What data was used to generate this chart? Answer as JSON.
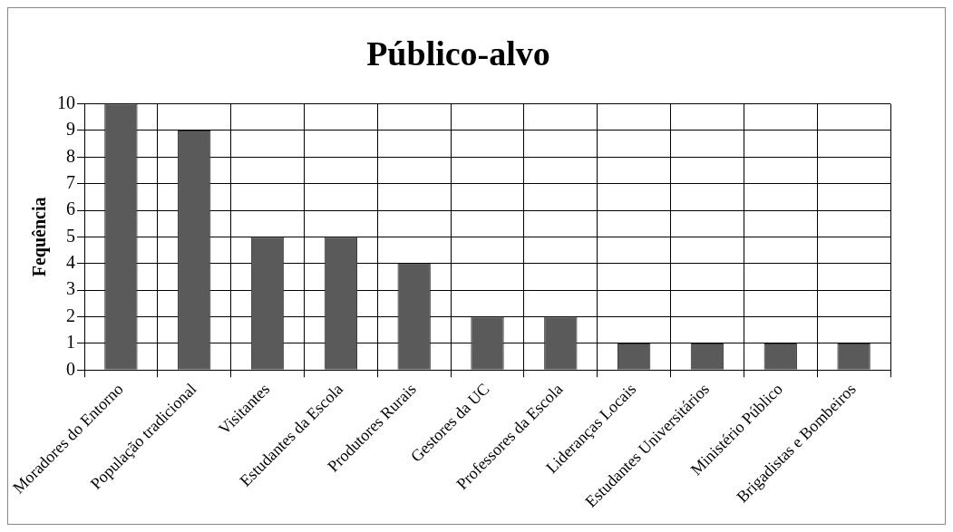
{
  "chart_data": {
    "type": "bar",
    "title": "Público-alvo",
    "ylabel": "Fequência",
    "categories": [
      "Moradores do Entorno",
      "População tradicional",
      "Visitantes",
      "Estudantes da Escola",
      "Produtores Rurais",
      "Gestores da UC",
      "Professores da Escola",
      "Lideranças Locais",
      "Estudantes Universitários",
      "Ministério Público",
      "Brigadistas e Bombeiros"
    ],
    "values": [
      10,
      9,
      5,
      5,
      4,
      2,
      2,
      1,
      1,
      1,
      1
    ],
    "color": "#5a5a5a",
    "ylim": [
      0,
      10
    ],
    "yticks": [
      0,
      1,
      2,
      3,
      4,
      5,
      6,
      7,
      8,
      9,
      10
    ],
    "grid": true,
    "legend": false
  }
}
